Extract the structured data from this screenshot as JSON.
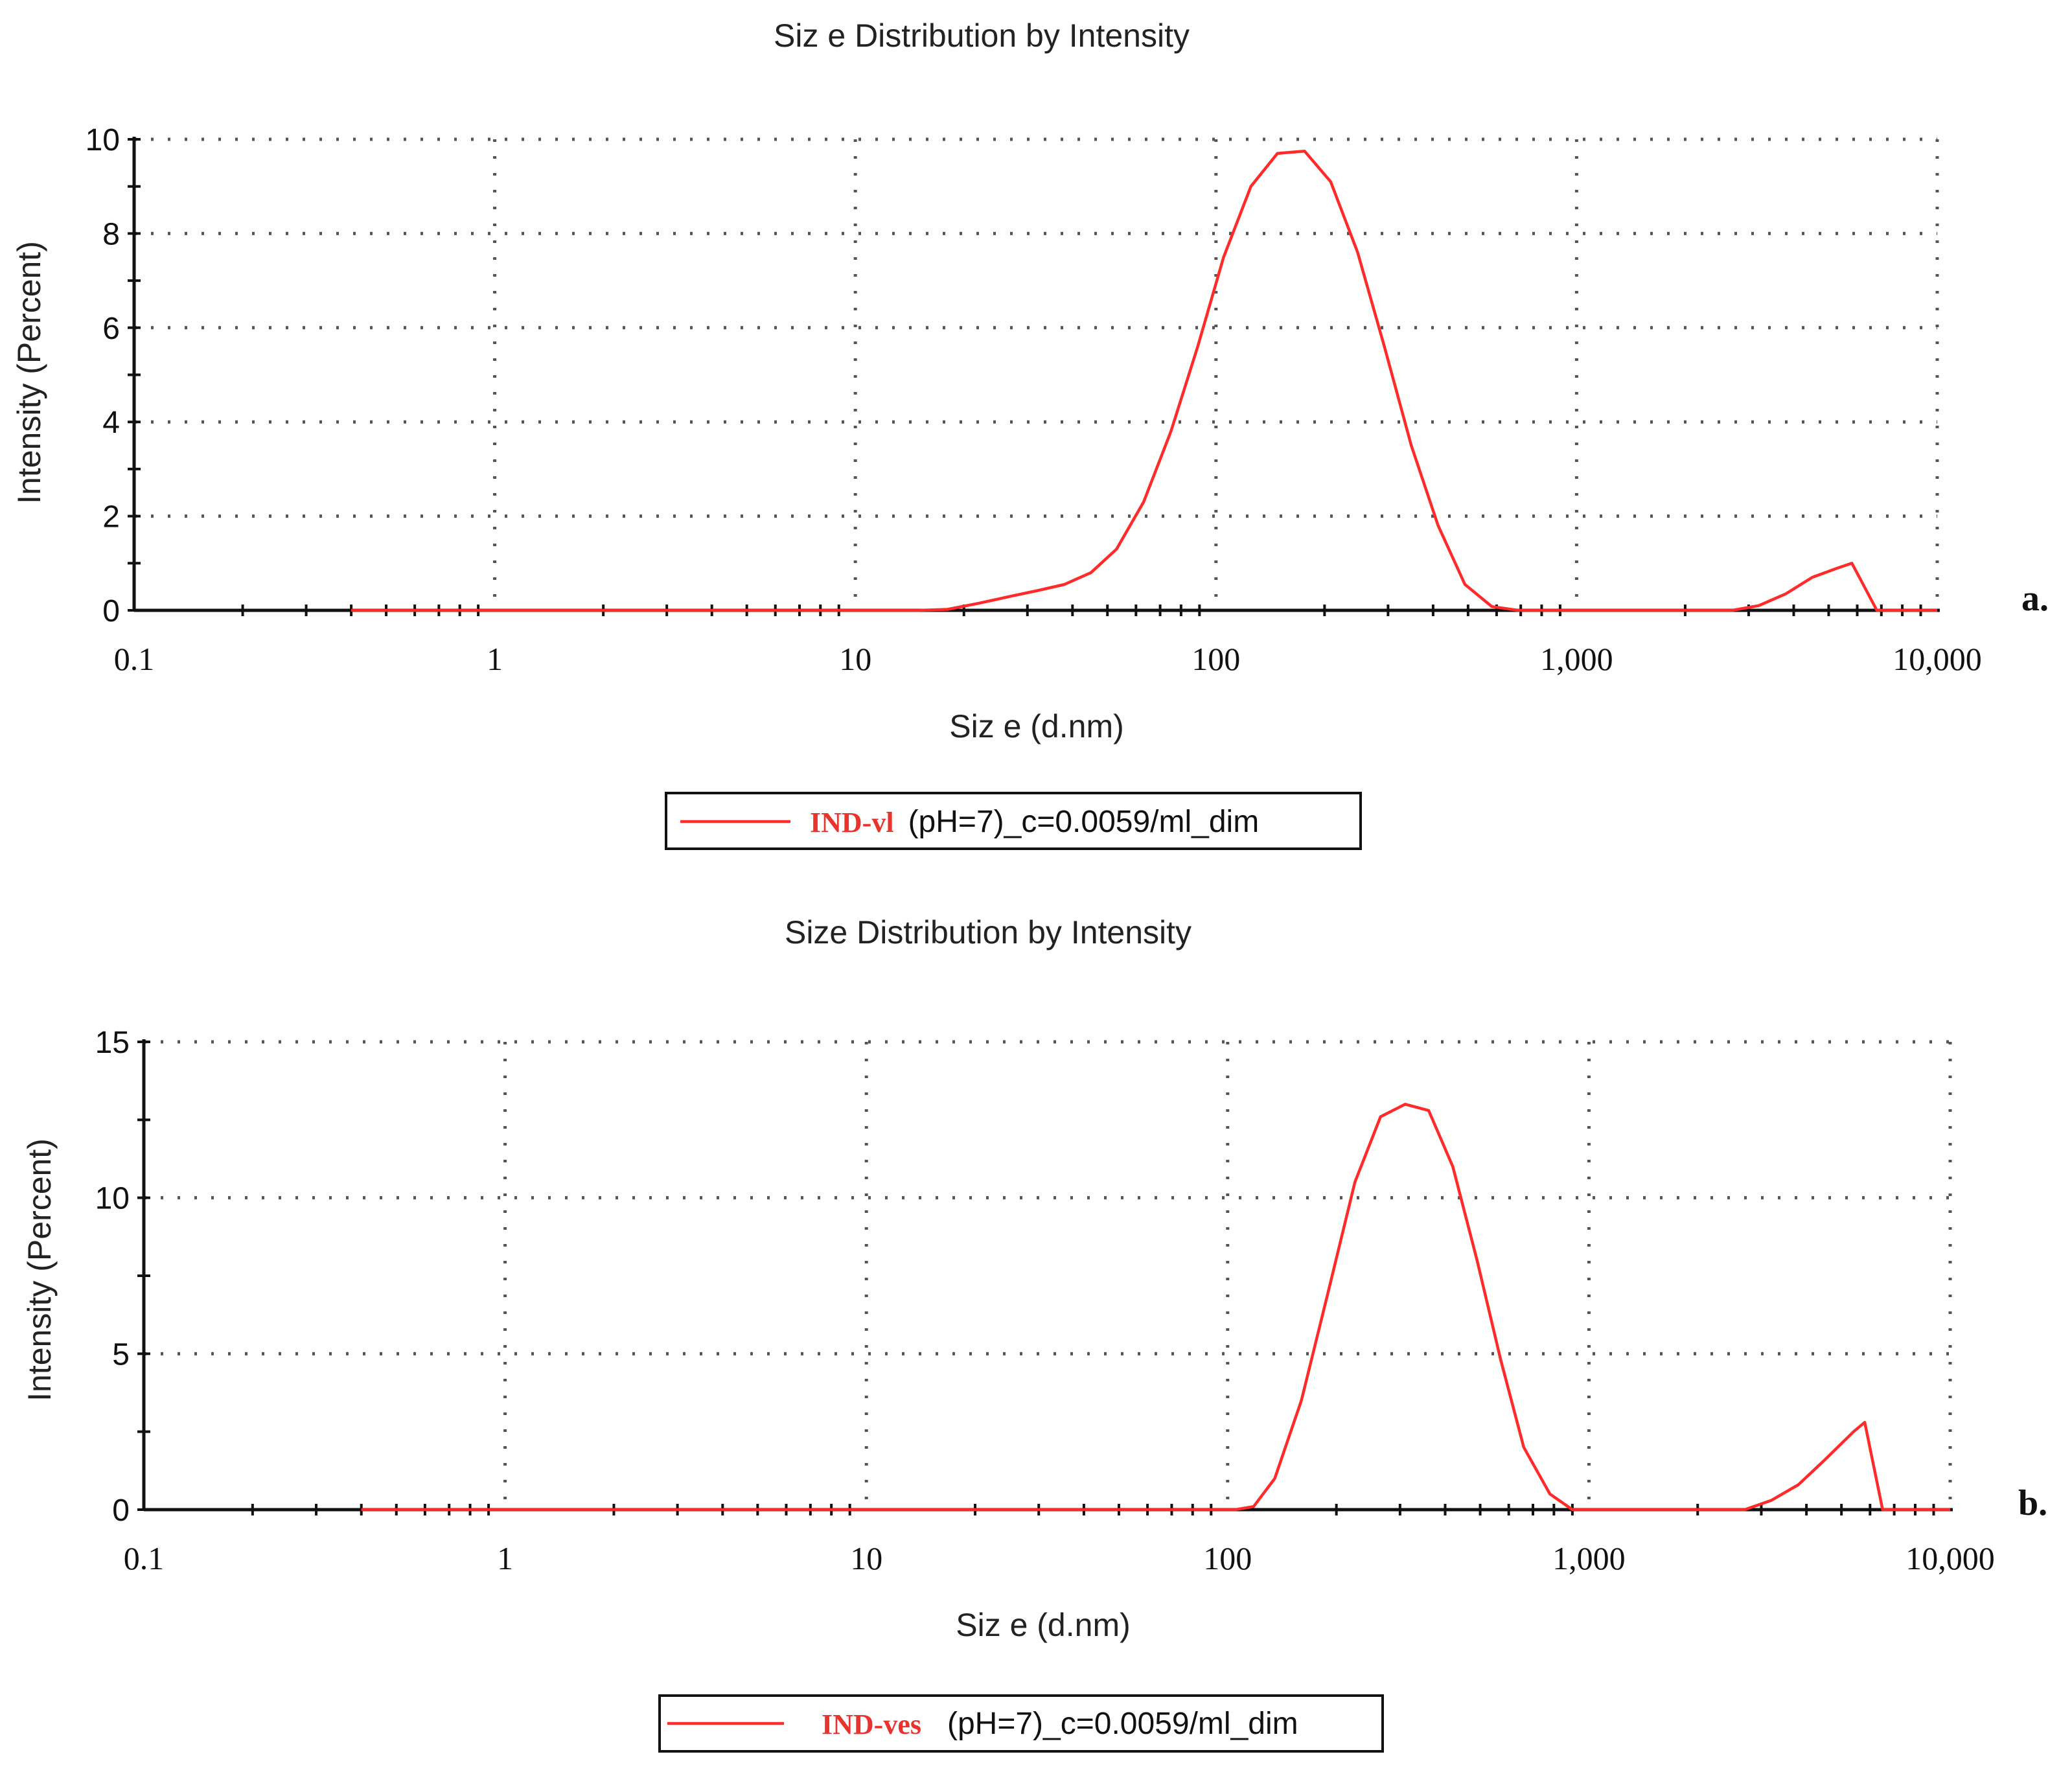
{
  "colors": {
    "series": "#ff2a2a",
    "legend_name": "#e8332f",
    "axis": "#111111",
    "grid": "#555555"
  },
  "chart_data": [
    {
      "type": "line",
      "panel_label": "a.",
      "title": "Siz e Distribution by Intensity",
      "xlabel": "Siz e (d.nm)",
      "ylabel": "Intensity (Percent)",
      "x_scale": "log",
      "xlim": [
        0.1,
        10000
      ],
      "ylim": [
        0,
        10
      ],
      "x_ticks": [
        0.1,
        1,
        10,
        100,
        1000,
        10000
      ],
      "x_tick_labels": [
        "0.1",
        "1",
        "10",
        "100",
        "1,000",
        "10,000"
      ],
      "y_ticks": [
        0,
        2,
        4,
        6,
        8,
        10
      ],
      "y_tick_labels": [
        "0",
        "2",
        "4",
        "6",
        "8",
        "10"
      ],
      "grid": true,
      "legend_position": "bottom-center",
      "series": [
        {
          "name_part1": "IND-vl",
          "name_part2": "(pH=7)_c=0.0059/ml_dim",
          "x": [
            0.4,
            15,
            18,
            22,
            27,
            32,
            38,
            45,
            53,
            63,
            75,
            89,
            105,
            125,
            148,
            176,
            208,
            247,
            293,
            348,
            413,
            490,
            582,
            690,
            820,
            2700,
            3200,
            3800,
            4500,
            5300,
            5800,
            6800,
            10000
          ],
          "y": [
            0,
            0,
            0.02,
            0.15,
            0.3,
            0.42,
            0.55,
            0.8,
            1.3,
            2.3,
            3.8,
            5.6,
            7.5,
            9.0,
            9.7,
            9.75,
            9.1,
            7.6,
            5.6,
            3.5,
            1.8,
            0.55,
            0.08,
            0,
            0,
            0,
            0.1,
            0.35,
            0.7,
            0.9,
            1.0,
            0,
            0
          ]
        }
      ]
    },
    {
      "type": "line",
      "panel_label": "b.",
      "title": "Size Distribution by Intensity",
      "xlabel": "Siz e (d.nm)",
      "ylabel": "Intensity (Percent)",
      "x_scale": "log",
      "xlim": [
        0.1,
        10000
      ],
      "ylim": [
        0,
        15
      ],
      "x_ticks": [
        0.1,
        1,
        10,
        100,
        1000,
        10000
      ],
      "x_tick_labels": [
        "0.1",
        "1",
        "10",
        "100",
        "1,000",
        "10,000"
      ],
      "y_ticks": [
        0,
        5,
        10,
        15
      ],
      "y_tick_labels": [
        "0",
        "5",
        "10",
        "15"
      ],
      "grid": true,
      "legend_position": "bottom-center",
      "series": [
        {
          "name_part1": "IND-ves",
          "name_part2": "(pH=7)_c=0.0059/ml_dim",
          "x": [
            0.4,
            105,
            118,
            135,
            160,
            190,
            225,
            265,
            310,
            360,
            420,
            490,
            570,
            660,
            780,
            900,
            2700,
            3200,
            3800,
            4500,
            5400,
            5800,
            6500,
            10000
          ],
          "y": [
            0,
            0,
            0.1,
            1.0,
            3.5,
            7.0,
            10.5,
            12.6,
            13.0,
            12.8,
            11.0,
            8.0,
            4.8,
            2.0,
            0.5,
            0,
            0,
            0.3,
            0.8,
            1.6,
            2.5,
            2.8,
            0,
            0
          ]
        }
      ]
    }
  ]
}
